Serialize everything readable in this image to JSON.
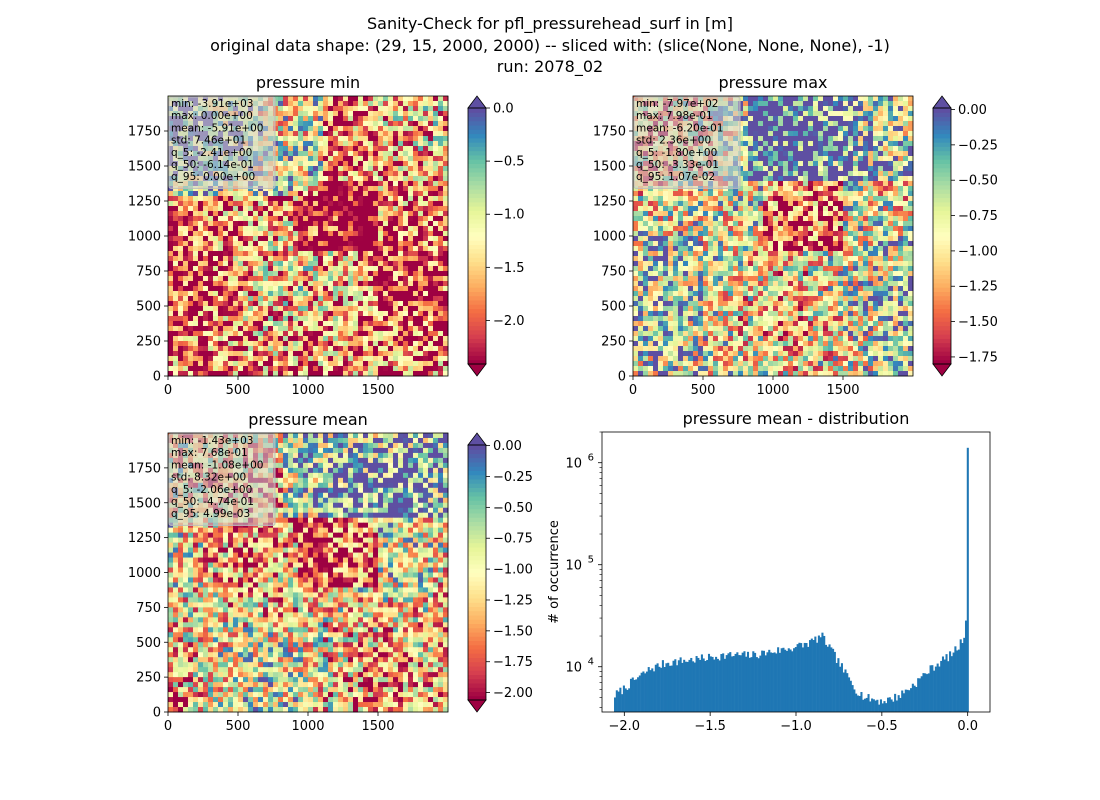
{
  "figure": {
    "title_lines": [
      "Sanity-Check for pfl_pressurehead_surf in [m]",
      "original data shape: (29, 15, 2000, 2000) -- sliced with: (slice(None, None, None), -1)",
      "run: 2078_02"
    ]
  },
  "panels": [
    {
      "title": "pressure min",
      "stats": [
        "min: -3.91e+03",
        "max: 0.00e+00",
        "mean: -5.91e+00",
        "std: 7.46e+01",
        "q_5: -2.41e+00",
        "q_50: -6.14e-01",
        "q_95: 0.00e+00"
      ],
      "colorbar": {
        "range": [
          -2.41,
          0.0
        ],
        "ticks": [
          "0.0",
          "−0.5",
          "−1.0",
          "−1.5",
          "−2.0"
        ],
        "tick_values": [
          0.0,
          -0.5,
          -1.0,
          -1.5,
          -2.0
        ],
        "extend": "both"
      },
      "map_seed": 11,
      "map_bias": 0.25
    },
    {
      "title": "pressure max",
      "stats": [
        "min: -7.97e+02",
        "max: 7.98e-01",
        "mean: -6.20e-01",
        "std: 2.36e+00",
        "q_5: -1.80e+00",
        "q_50: -3.33e-01",
        "q_95: 1.07e-02"
      ],
      "colorbar": {
        "range": [
          -1.8,
          0.0107
        ],
        "ticks": [
          "0.00",
          "−0.25",
          "−0.50",
          "−0.75",
          "−1.00",
          "−1.25",
          "−1.50",
          "−1.75"
        ],
        "tick_values": [
          0.0,
          -0.25,
          -0.5,
          -0.75,
          -1.0,
          -1.25,
          -1.5,
          -1.75
        ],
        "extend": "both"
      },
      "map_seed": 23,
      "map_bias": 0.55
    },
    {
      "title": "pressure mean",
      "stats": [
        "min: -1.43e+03",
        "max: 7.68e-01",
        "mean: -1.08e+00",
        "std: 8.32e+00",
        "q_5: -2.06e+00",
        "q_50: -4.74e-01",
        "q_95: 4.99e-03"
      ],
      "colorbar": {
        "range": [
          -2.06,
          0.00499
        ],
        "ticks": [
          "0.00",
          "−0.25",
          "−0.50",
          "−0.75",
          "−1.00",
          "−1.25",
          "−1.50",
          "−1.75",
          "−2.00"
        ],
        "tick_values": [
          0.0,
          -0.25,
          -0.5,
          -0.75,
          -1.0,
          -1.25,
          -1.5,
          -1.75,
          -2.0
        ],
        "extend": "both"
      },
      "map_seed": 37,
      "map_bias": 0.45
    }
  ],
  "map_axes": {
    "xticks": [
      "0",
      "500",
      "1000",
      "1500"
    ],
    "xtick_values": [
      0,
      500,
      1000,
      1500
    ],
    "yticks": [
      "0",
      "250",
      "500",
      "750",
      "1000",
      "1250",
      "1500",
      "1750"
    ],
    "ytick_values": [
      0,
      250,
      500,
      750,
      1000,
      1250,
      1500,
      1750
    ],
    "extent": [
      0,
      2000
    ]
  },
  "chart_data": [
    {
      "type": "heatmap",
      "title": "pressure min",
      "x_range": [
        0,
        2000
      ],
      "y_range": [
        0,
        2000
      ],
      "colormap": "Spectral",
      "color_range": [
        -2.41,
        0.0
      ]
    },
    {
      "type": "heatmap",
      "title": "pressure max",
      "x_range": [
        0,
        2000
      ],
      "y_range": [
        0,
        2000
      ],
      "colormap": "Spectral",
      "color_range": [
        -1.8,
        0.0107
      ]
    },
    {
      "type": "heatmap",
      "title": "pressure mean",
      "x_range": [
        0,
        2000
      ],
      "y_range": [
        0,
        2000
      ],
      "colormap": "Spectral",
      "color_range": [
        -2.06,
        0.00499
      ]
    },
    {
      "type": "bar",
      "title": "pressure mean - distribution",
      "xlabel": "",
      "ylabel": "# of occurrence",
      "xlim": [
        -2.13,
        0.13
      ],
      "ylim": [
        3600,
        2000000
      ],
      "y_scale": "log",
      "xticks": [
        "−2.0",
        "−1.5",
        "−1.0",
        "−0.5",
        "0.0"
      ],
      "xtick_values": [
        -2.0,
        -1.5,
        -1.0,
        -0.5,
        0.0
      ],
      "yticks": [
        "10^4",
        "10^5",
        "10^6"
      ],
      "ytick_values": [
        10000,
        100000,
        1000000
      ],
      "color": "#1f77b4",
      "bin_range": [
        -2.06,
        0.005
      ],
      "bin_count": 200,
      "profile_x": [
        -2.06,
        -2.02,
        -1.95,
        -1.85,
        -1.75,
        -1.65,
        -1.55,
        -1.45,
        -1.35,
        -1.25,
        -1.15,
        -1.05,
        -0.95,
        -0.9,
        -0.85,
        -0.8,
        -0.75,
        -0.7,
        -0.65,
        -0.6,
        -0.55,
        -0.5,
        -0.45,
        -0.4,
        -0.35,
        -0.3,
        -0.25,
        -0.2,
        -0.15,
        -0.1,
        -0.05,
        -0.02,
        -0.01,
        0.0
      ],
      "profile_y": [
        5200,
        5800,
        7200,
        9500,
        11000,
        11500,
        12000,
        12800,
        13000,
        13000,
        14000,
        15000,
        16500,
        18000,
        20000,
        15000,
        11000,
        8000,
        6000,
        5000,
        4800,
        4600,
        4800,
        5200,
        6000,
        7000,
        8500,
        10000,
        11500,
        13000,
        16000,
        20000,
        32000,
        1400000
      ]
    }
  ]
}
